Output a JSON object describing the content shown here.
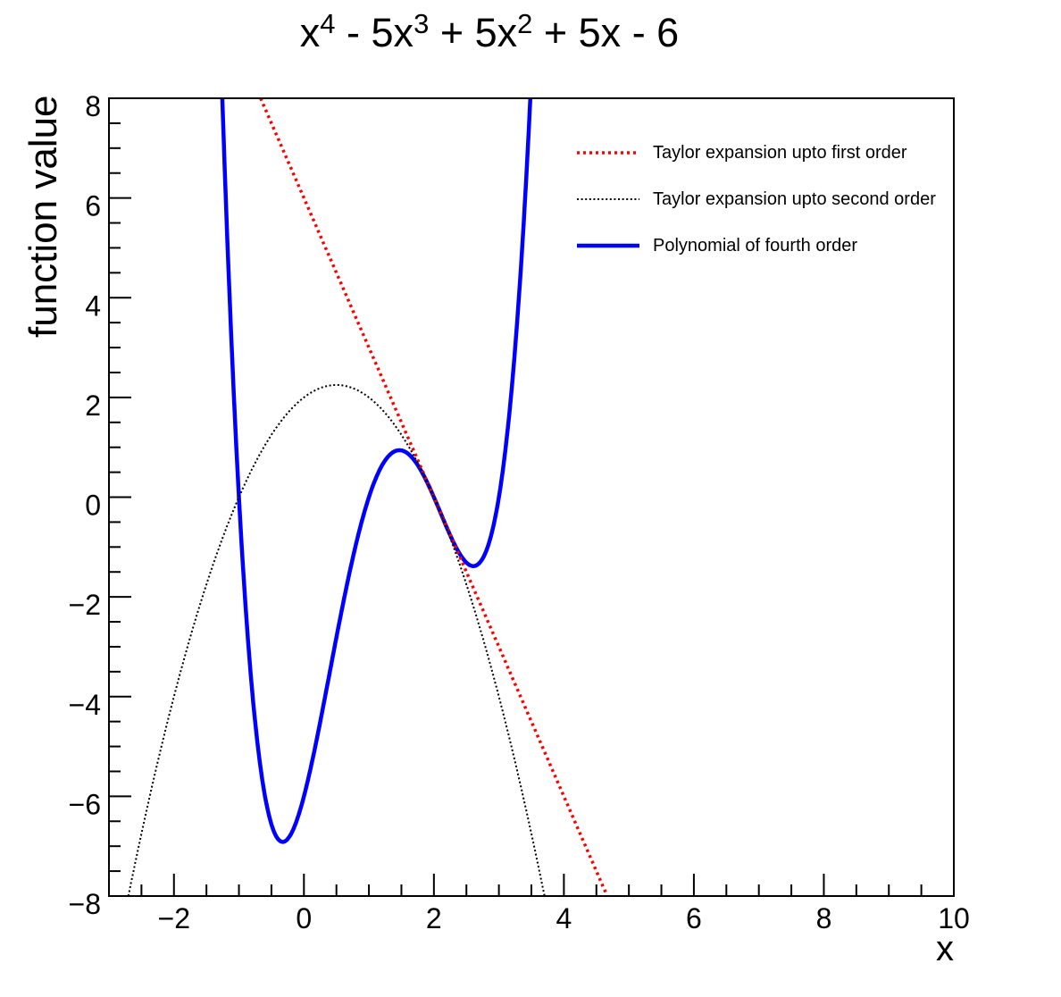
{
  "title": {
    "plain": "x^4 - 5x^3 + 5x^2 + 5x - 6",
    "segments": [
      {
        "t": "x",
        "sup": "4"
      },
      {
        "t": " - 5x",
        "sup": "3"
      },
      {
        "t": " + 5x",
        "sup": "2"
      },
      {
        "t": " + 5x - 6",
        "sup": ""
      }
    ]
  },
  "chart_data": {
    "type": "line",
    "title": "x^4 - 5x^3 + 5x^2 + 5x - 6",
    "xlabel": "x",
    "ylabel": "function value",
    "xlim": [
      -3,
      10
    ],
    "ylim": [
      -8,
      8
    ],
    "grid": false,
    "background": "#ffffff",
    "frame_color": "#000000",
    "x_major_ticks": [
      -2,
      0,
      2,
      4,
      6,
      8,
      10
    ],
    "x_tick_labels": [
      "−2",
      "0",
      "2",
      "4",
      "6",
      "8",
      "10"
    ],
    "x_minor_tick_step": 0.5,
    "y_major_ticks": [
      -8,
      -6,
      -4,
      -2,
      0,
      2,
      4,
      6,
      8
    ],
    "y_tick_labels": [
      "−8",
      "−6",
      "−4",
      "−2",
      "0",
      "2",
      "4",
      "6",
      "8"
    ],
    "y_minor_tick_step": 0.5,
    "x_sample_step": 0.02,
    "legend_position": "top-right",
    "series": [
      {
        "id": "taylor-first-order",
        "name": "Taylor expansion upto first order",
        "color": "#ff0000",
        "line_style": "dotted",
        "line_width": 3.5,
        "formula": "y = -3(x-2)",
        "polynomial_coeffs_ascending": [
          6,
          -3
        ],
        "visible_x_range": [
          -0.67,
          4.67
        ],
        "key_points": [
          {
            "x": 2,
            "y": 0
          }
        ]
      },
      {
        "id": "taylor-second-order",
        "name": "Taylor expansion upto second order",
        "color": "#000000",
        "line_style": "dotted-fine",
        "line_width": 2,
        "formula": "y = -3(x-2) - (x-2)^2",
        "polynomial_coeffs_ascending": [
          2,
          1,
          -1
        ],
        "visible_x_range": [
          -2.7,
          3.7
        ],
        "key_points": [
          {
            "x": -1,
            "y": 0
          },
          {
            "x": 0.5,
            "y": 2.25
          },
          {
            "x": 2,
            "y": 0
          }
        ]
      },
      {
        "id": "polynomial-fourth-order",
        "name": "Polynomial of fourth order",
        "color": "#0000ff",
        "line_style": "solid",
        "line_width": 4.5,
        "formula": "y = x^4 - 5x^3 + 5x^2 + 5x - 6",
        "polynomial_coeffs_ascending": [
          -6,
          5,
          5,
          -5,
          1
        ],
        "visible_x_range": [
          -1.25,
          3.49
        ],
        "key_points": [
          {
            "x": -1,
            "y": 0
          },
          {
            "x": 1,
            "y": 0
          },
          {
            "x": 2,
            "y": 0
          },
          {
            "x": 3,
            "y": 0
          },
          {
            "x": -0.32,
            "y": -6.91
          },
          {
            "x": 1.49,
            "y": 0.94
          },
          {
            "x": 2.61,
            "y": -1.38
          }
        ]
      }
    ]
  }
}
